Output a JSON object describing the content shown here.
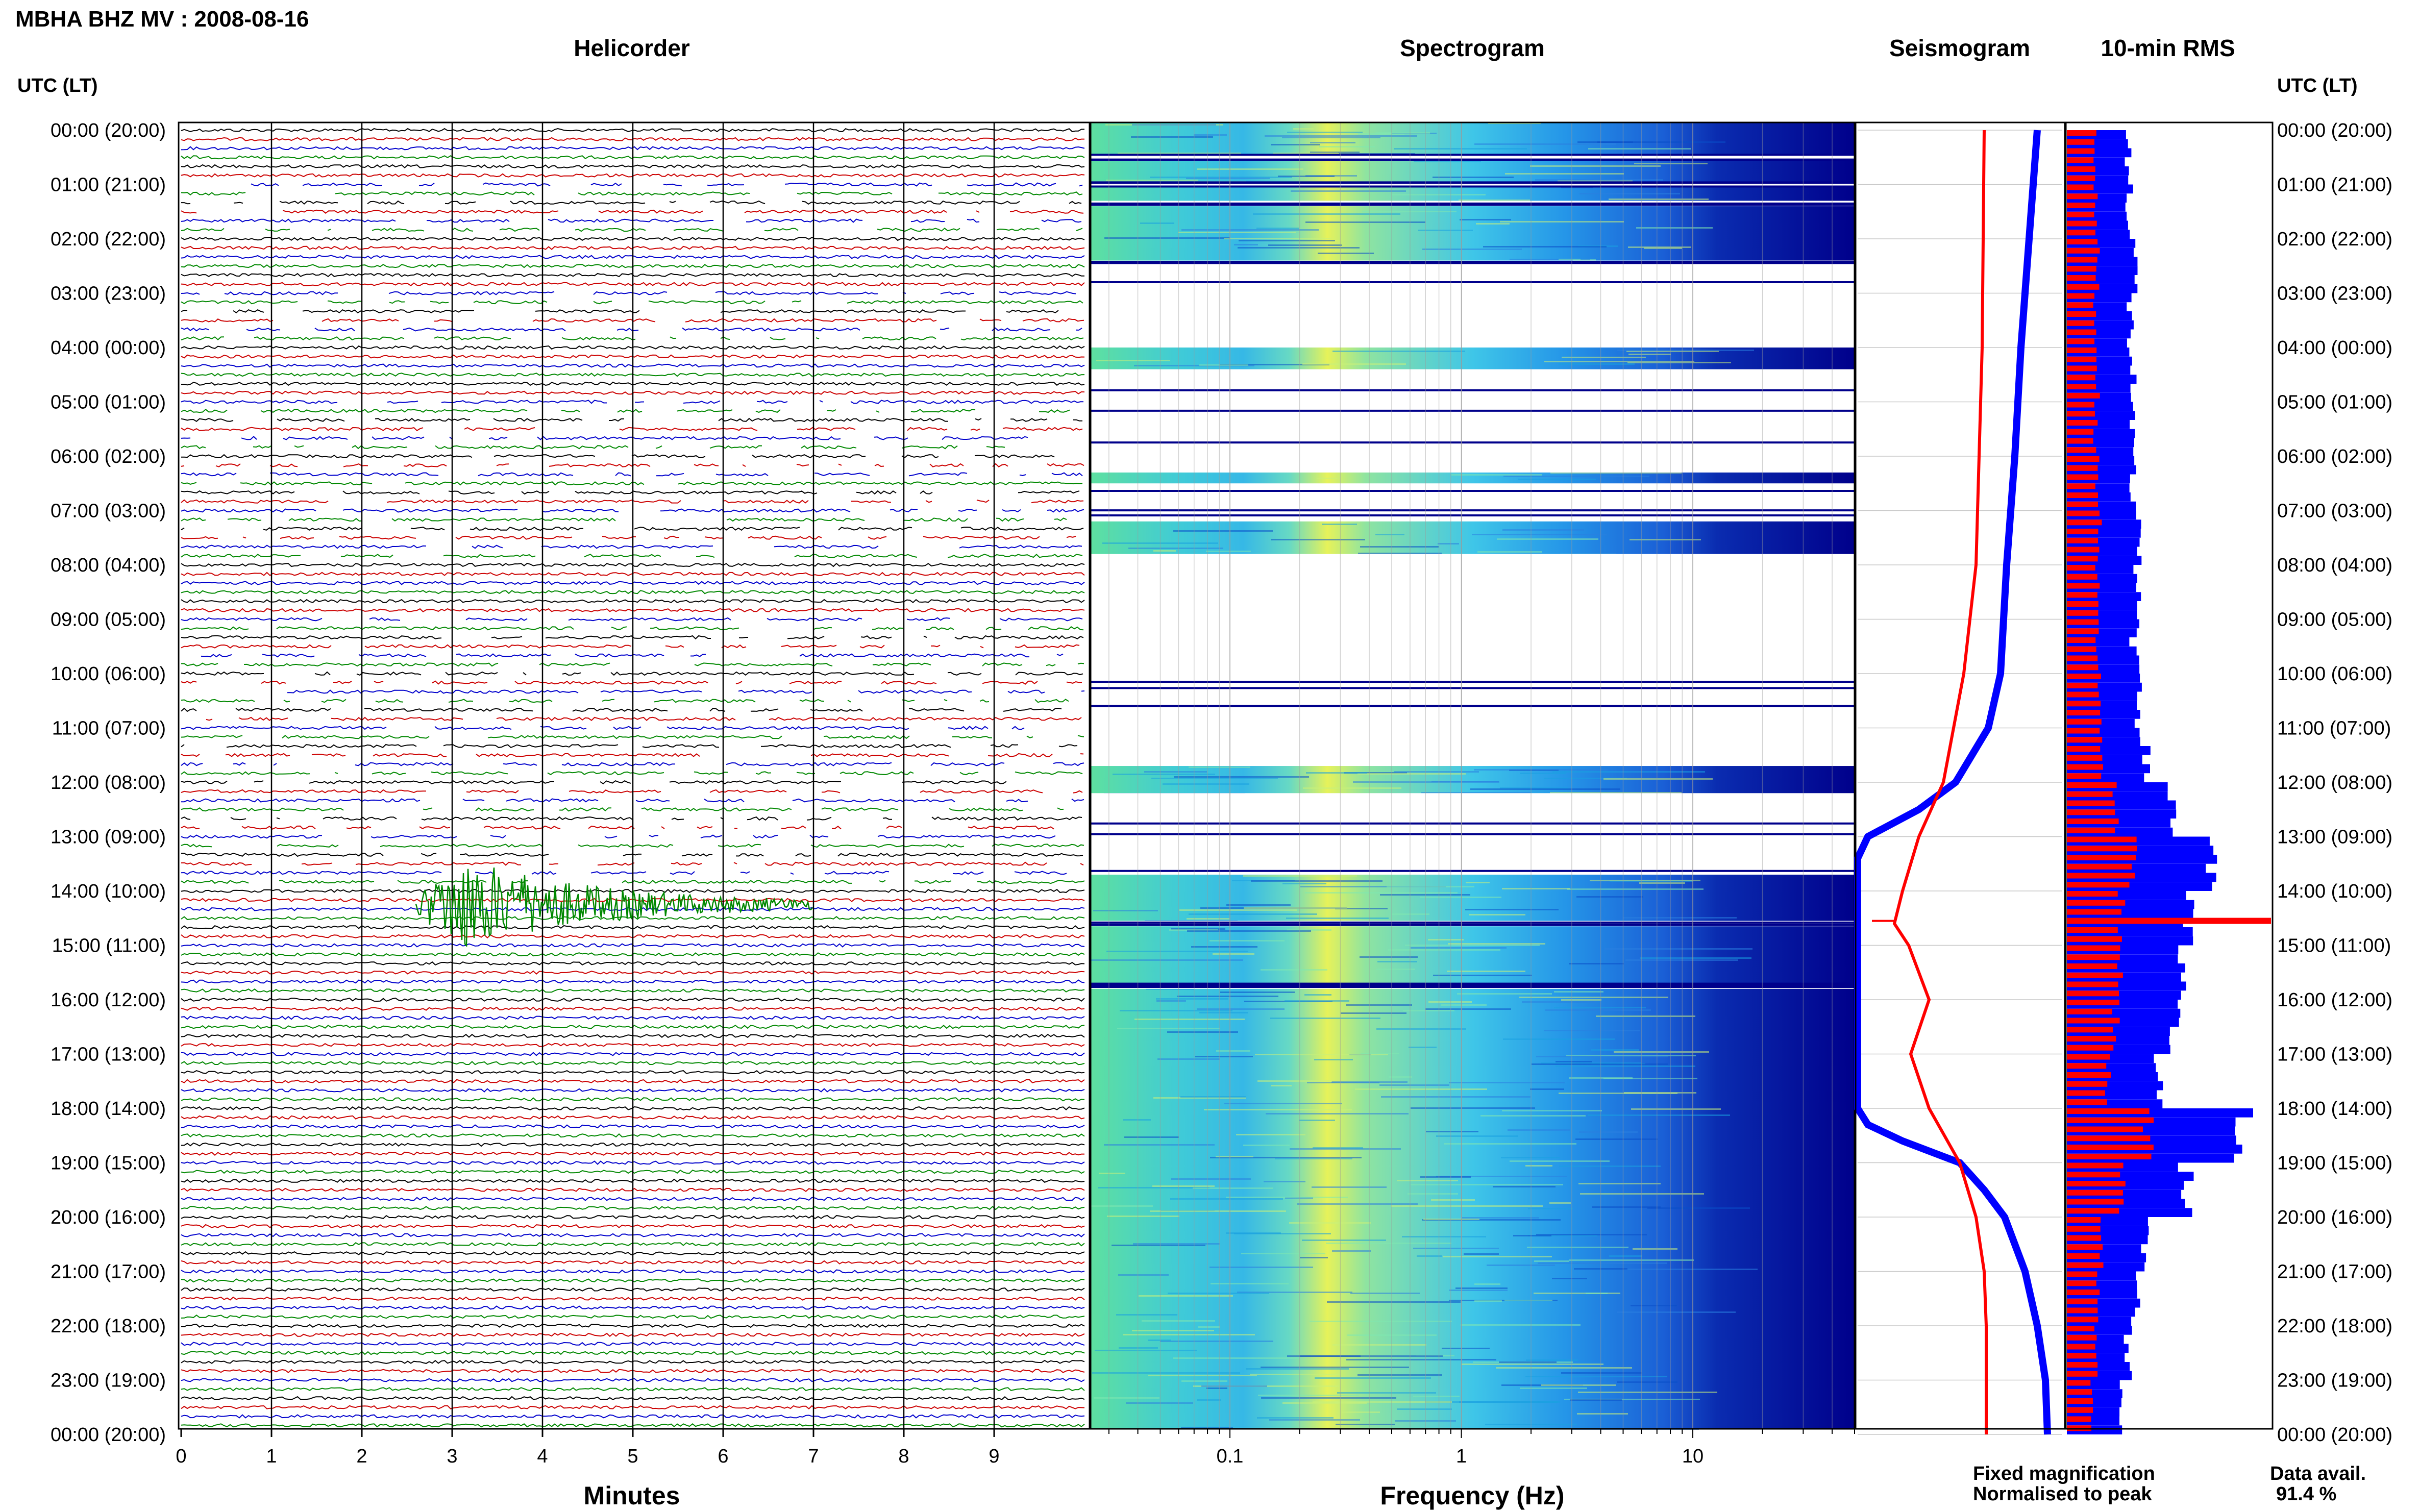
{
  "header": {
    "title": "MBHA BHZ MV : 2008-08-16",
    "utc_label_left": "UTC (LT)",
    "utc_label_right": "UTC (LT)"
  },
  "hour_labels": [
    "00:00 (20:00)",
    "01:00 (21:00)",
    "02:00 (22:00)",
    "03:00 (23:00)",
    "04:00 (00:00)",
    "05:00 (01:00)",
    "06:00 (02:00)",
    "07:00 (03:00)",
    "08:00 (04:00)",
    "09:00 (05:00)",
    "10:00 (06:00)",
    "11:00 (07:00)",
    "12:00 (08:00)",
    "13:00 (09:00)",
    "14:00 (10:00)",
    "15:00 (11:00)",
    "16:00 (12:00)",
    "17:00 (13:00)",
    "18:00 (14:00)",
    "19:00 (15:00)",
    "20:00 (16:00)",
    "21:00 (17:00)",
    "22:00 (18:00)",
    "23:00 (19:00)",
    "00:00 (20:00)"
  ],
  "colors": {
    "trace1": "#000000",
    "trace2": "#cc0000",
    "trace3": "#0000cc",
    "trace4": "#008800",
    "fixed": "#0000ff",
    "normalised": "#ff0000",
    "spec_high": "#00008b"
  },
  "chart_data": [
    {
      "type": "line",
      "panel": "helicorder",
      "title": "Helicorder",
      "xlabel": "Minutes",
      "x_ticks": [
        "0",
        "1",
        "2",
        "3",
        "4",
        "5",
        "6",
        "7",
        "8",
        "9"
      ],
      "xlim": [
        0,
        10
      ],
      "rows_per_hour": 6,
      "trace_colors": [
        "black",
        "red",
        "blue",
        "green"
      ],
      "event": {
        "hour": 14,
        "start_minute": 2.6,
        "peak_minute": 3.1,
        "end_minute": 7.0,
        "color": "green"
      },
      "gaps_hours": [
        1,
        3,
        5,
        6,
        7,
        9,
        10,
        11,
        12,
        13
      ]
    },
    {
      "type": "heatmap",
      "panel": "spectrogram",
      "title": "Spectrogram",
      "xlabel": "Frequency (Hz)",
      "x_scale": "log",
      "xlim": [
        0.025,
        50
      ],
      "x_ticks": [
        "0.1",
        "1",
        "10"
      ],
      "missing_bands_hours": [
        [
          0.45,
          0.55
        ],
        [
          0.95,
          1.05
        ],
        [
          1.3,
          1.4
        ],
        [
          2.4,
          4.0
        ],
        [
          4.4,
          6.3
        ],
        [
          6.5,
          7.2
        ],
        [
          7.8,
          11.7
        ],
        [
          12.2,
          13.7
        ],
        [
          14.55,
          14.65
        ],
        [
          15.7,
          15.8
        ]
      ]
    },
    {
      "type": "line",
      "panel": "seismogram",
      "title": "Seismogram",
      "series": [
        {
          "name": "Fixed magnification",
          "color": "#0000ff",
          "hours": [
            0,
            2,
            4,
            6,
            8,
            10,
            11,
            12,
            12.5,
            13,
            13.4,
            14,
            18,
            18.3,
            18.6,
            19,
            19.5,
            20,
            21,
            22,
            23,
            24
          ],
          "position": [
            0.88,
            0.84,
            0.8,
            0.77,
            0.73,
            0.7,
            0.64,
            0.48,
            0.3,
            0.05,
            0.0,
            0.0,
            0.0,
            0.05,
            0.22,
            0.5,
            0.62,
            0.72,
            0.82,
            0.88,
            0.92,
            0.93
          ]
        },
        {
          "name": "Normalised to peak",
          "color": "#ff0000",
          "hours": [
            0,
            4,
            8,
            10,
            12,
            13,
            14,
            14.6,
            15,
            16,
            17,
            18,
            19,
            20,
            21,
            22,
            23,
            24
          ],
          "position": [
            0.62,
            0.61,
            0.58,
            0.52,
            0.42,
            0.3,
            0.22,
            0.18,
            0.25,
            0.35,
            0.26,
            0.35,
            0.5,
            0.58,
            0.62,
            0.63,
            0.63,
            0.63
          ]
        }
      ]
    },
    {
      "type": "bar",
      "panel": "rms",
      "title": "10-min RMS",
      "orientation": "horizontal",
      "series": [
        {
          "name": "Fixed magnification",
          "color": "#0000ff",
          "hours": [
            0,
            1,
            2,
            3,
            4,
            5,
            6,
            7,
            8,
            9,
            10,
            11,
            12,
            13,
            14,
            15,
            16,
            17,
            18,
            19,
            20,
            21,
            22,
            23
          ],
          "values": [
            0.3,
            0.31,
            0.33,
            0.31,
            0.32,
            0.31,
            0.32,
            0.36,
            0.34,
            0.33,
            0.36,
            0.38,
            0.52,
            0.72,
            0.58,
            0.56,
            0.52,
            0.44,
            0.88,
            0.58,
            0.38,
            0.34,
            0.3,
            0.27
          ]
        },
        {
          "name": "Normalised to peak",
          "color": "#ff0000",
          "hours": [
            0,
            1,
            2,
            3,
            4,
            5,
            6,
            7,
            8,
            9,
            10,
            11,
            12,
            13,
            14,
            15,
            16,
            17,
            18,
            19,
            20,
            21,
            22,
            23
          ],
          "values": [
            0.14,
            0.14,
            0.15,
            0.14,
            0.15,
            0.14,
            0.15,
            0.16,
            0.15,
            0.15,
            0.16,
            0.17,
            0.24,
            0.33,
            0.27,
            0.26,
            0.24,
            0.2,
            0.4,
            0.27,
            0.17,
            0.15,
            0.14,
            0.12
          ]
        }
      ],
      "spike": {
        "hour": 14.55,
        "value": 1.0,
        "color": "#ff0000"
      }
    }
  ],
  "legend": {
    "fixed_label": "Fixed magnification",
    "normalised_label": "Normalised to peak",
    "avail_label": "Data avail.",
    "avail_value": "91.4 %"
  }
}
